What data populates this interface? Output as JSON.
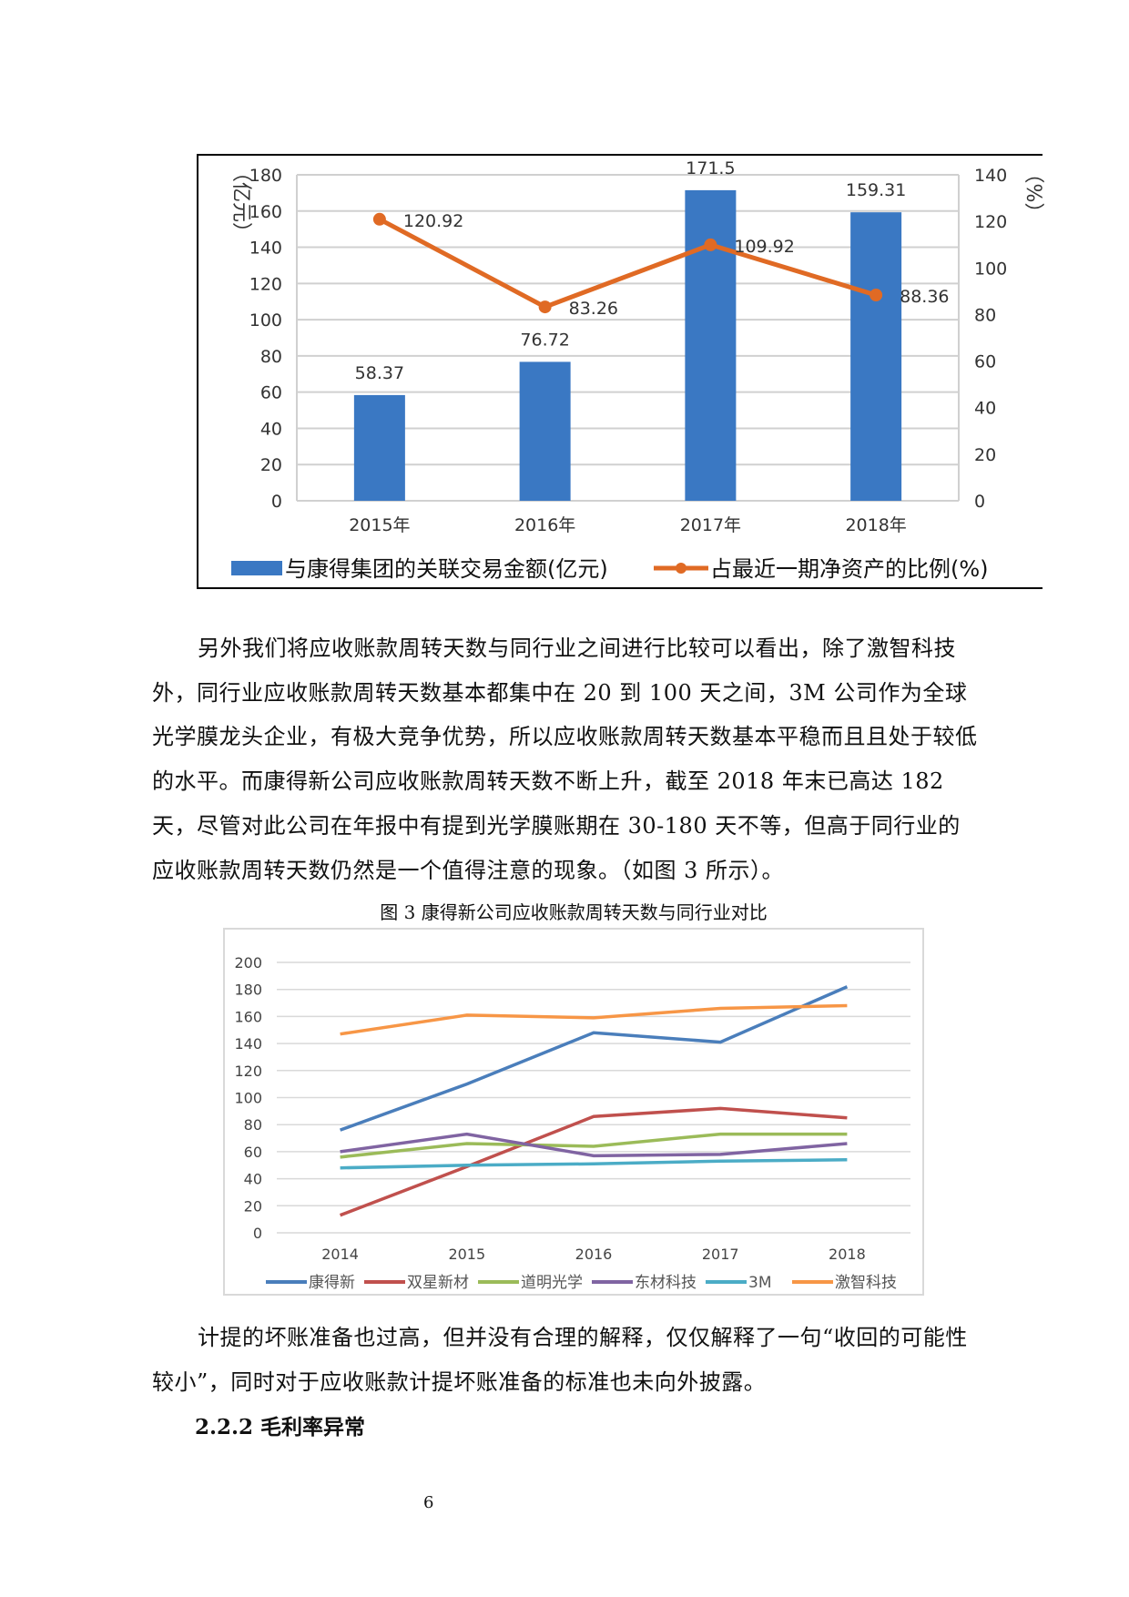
{
  "chart_data": [
    {
      "type": "bar",
      "categories": [
        "2015年",
        "2016年",
        "2017年",
        "2018年"
      ],
      "series": [
        {
          "name": "与康得集团的关联交易金额(亿元)",
          "type": "bar",
          "axis": "left",
          "values": [
            58.37,
            76.72,
            171.5,
            159.31
          ],
          "color": "#3a78c3"
        },
        {
          "name": "占最近一期净资产的比例(%)",
          "type": "line",
          "axis": "right",
          "values": [
            120.92,
            83.26,
            109.92,
            88.36
          ],
          "color": "#e06a24"
        }
      ],
      "ylabel": "（亿元）",
      "y2label": "（%）",
      "ylim": [
        0,
        180
      ],
      "yticks": [
        0,
        20,
        40,
        60,
        80,
        100,
        120,
        140,
        160,
        180
      ],
      "y2lim": [
        0,
        140
      ],
      "y2ticks": [
        0,
        20,
        40,
        60,
        80,
        100,
        120,
        140
      ],
      "grid": true,
      "legend": "bottom"
    },
    {
      "type": "line",
      "title": "图 3 康得新公司应收账款周转天数与同行业对比",
      "categories": [
        "2014",
        "2015",
        "2016",
        "2017",
        "2018"
      ],
      "series": [
        {
          "name": "康得新",
          "values": [
            76,
            110,
            148,
            141,
            182
          ],
          "color": "#4a7ebb"
        },
        {
          "name": "双星新材",
          "values": [
            13,
            49,
            86,
            92,
            85
          ],
          "color": "#c0504d"
        },
        {
          "name": "道明光学",
          "values": [
            56,
            66,
            64,
            73,
            73
          ],
          "color": "#9bbb59"
        },
        {
          "name": "东材科技",
          "values": [
            60,
            73,
            57,
            58,
            66
          ],
          "color": "#8064a2"
        },
        {
          "name": "3M",
          "values": [
            48,
            50,
            51,
            53,
            54
          ],
          "color": "#4bacc6"
        },
        {
          "name": "激智科技",
          "values": [
            147,
            161,
            159,
            166,
            168
          ],
          "color": "#f79646"
        }
      ],
      "ylim": [
        0,
        200
      ],
      "yticks": [
        0,
        20,
        40,
        60,
        80,
        100,
        120,
        140,
        160,
        180,
        200
      ],
      "grid": true,
      "legend": "bottom"
    }
  ],
  "text": {
    "para1": "另外我们将应收账款周转天数与同行业之间进行比较可以看出，除了激智科技外，同行业应收账款周转天数基本都集中在 20 到 100 天之间，3M 公司作为全球光学膜龙头企业，有极大竞争优势，所以应收账款周转天数基本平稳而且且处于较低的水平。而康得新公司应收账款周转天数不断上升，截至 2018 年末已高达 182 天，尽管对此公司在年报中有提到光学膜账期在 30-180 天不等，但高于同行业的应收账款周转天数仍然是一个值得注意的现象。（如图 3 所示）。",
    "para2": "计提的坏账准备也过高，但并没有合理的解释，仅仅解释了一句“收回的可能性较小”，同时对于应收账款计提坏账准备的标准也未向外披露。",
    "heading": "2.2.2 毛利率异常",
    "page_number": "6"
  }
}
